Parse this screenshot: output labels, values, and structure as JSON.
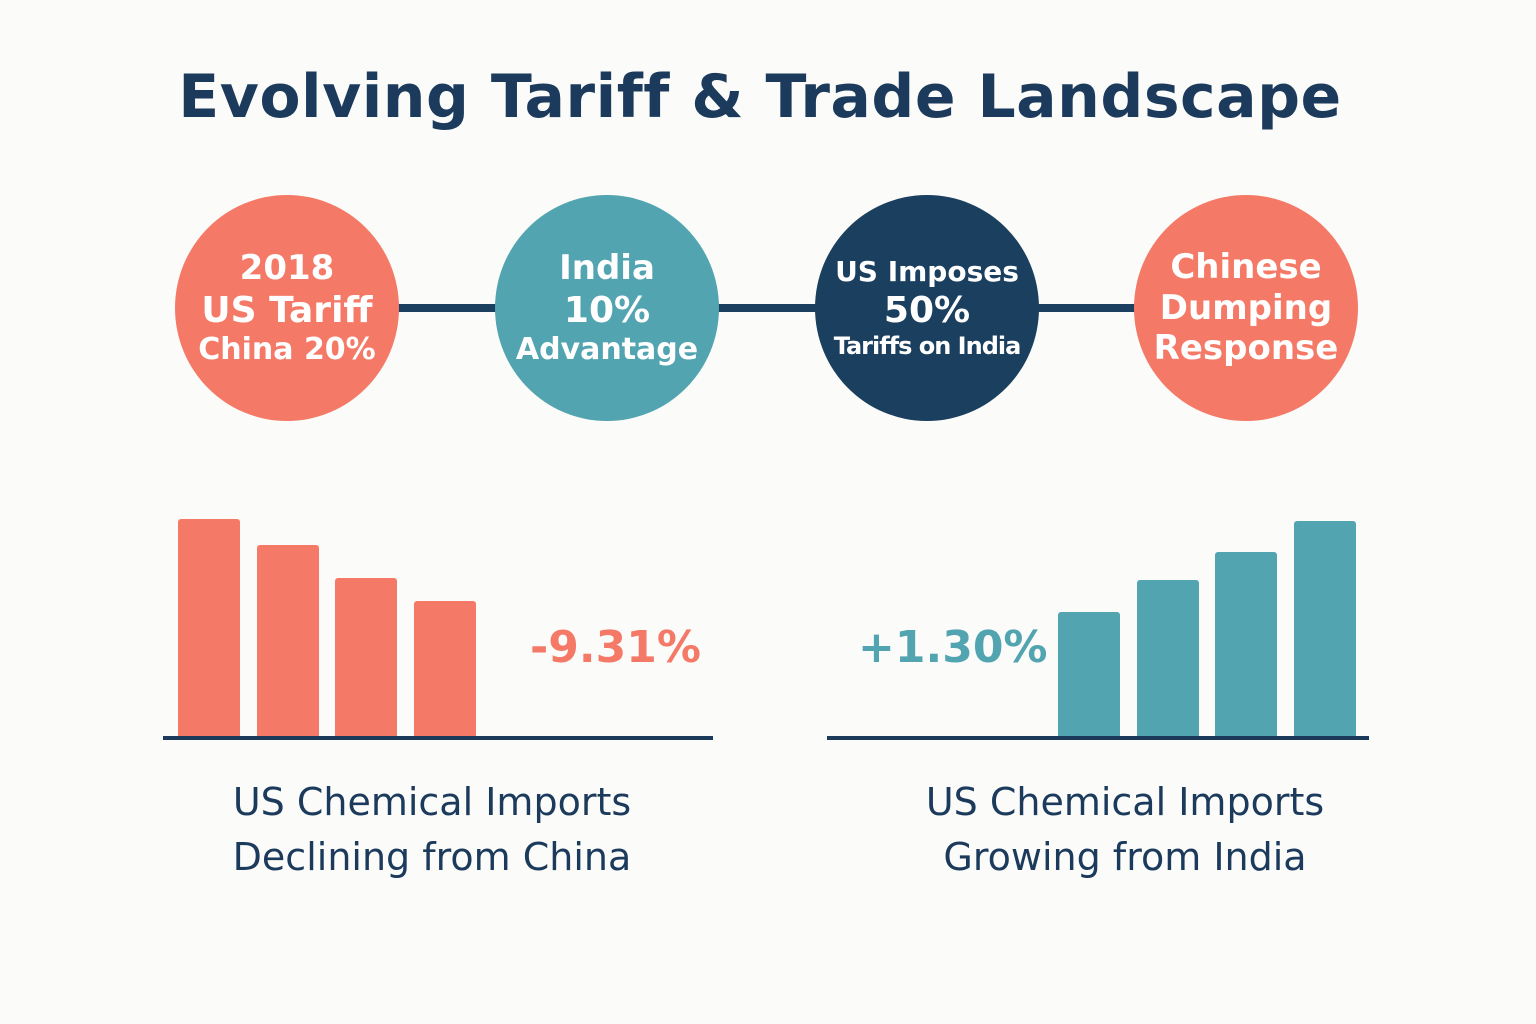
{
  "title": "Evolving Tariff & Trade Landscape",
  "colors": {
    "coral": "#f47a67",
    "teal": "#52a5b0",
    "navy": "#1b3f5e",
    "text": "#1b3a5c"
  },
  "timeline": [
    {
      "lines": [
        "2018",
        "US Tariff",
        "China 20%"
      ],
      "color": "#f47a67"
    },
    {
      "lines": [
        "India",
        "10%",
        "Advantage"
      ],
      "color": "#52a5b0"
    },
    {
      "lines": [
        "US Imposes",
        "50%",
        "Tariffs on India"
      ],
      "color": "#1b3f5e"
    },
    {
      "lines": [
        "Chinese",
        "Dumping",
        "Response"
      ],
      "color": "#f47a67"
    }
  ],
  "chart_data": [
    {
      "type": "bar",
      "relative_heights": [
        100,
        88,
        73,
        62
      ],
      "label": "-9.31%",
      "caption": [
        "US Chemical Imports",
        "Declining from China"
      ],
      "color": "#f47a67"
    },
    {
      "type": "bar",
      "relative_heights": [
        57,
        72,
        85,
        99
      ],
      "label": "+1.30%",
      "caption": [
        "US Chemical Imports",
        "Growing from India"
      ],
      "color": "#52a5b0"
    }
  ]
}
